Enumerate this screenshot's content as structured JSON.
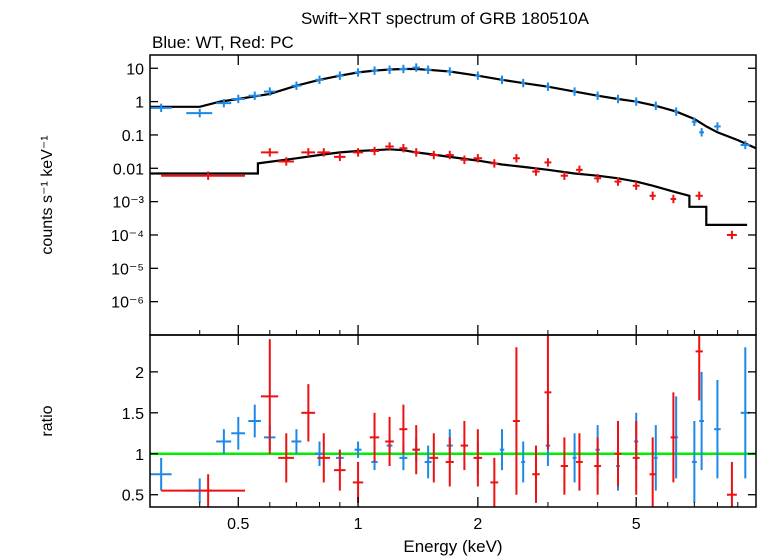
{
  "chart_data": {
    "type": "scatter",
    "title": "Swift−XRT spectrum of GRB 180510A",
    "subtitle": "Blue: WT, Red: PC",
    "xlabel": "Energy (keV)",
    "x_scale": "log",
    "xlim": [
      0.3,
      10
    ],
    "x_ticks": [
      {
        "value": 0.5,
        "label": "0.5"
      },
      {
        "value": 1,
        "label": "1"
      },
      {
        "value": 2,
        "label": "2"
      },
      {
        "value": 5,
        "label": "5"
      }
    ],
    "top_panel": {
      "ylabel": "counts s⁻¹ keV⁻¹",
      "y_scale": "log",
      "ylim": [
        1e-07,
        25
      ],
      "y_ticks": [
        {
          "value": 10,
          "label": "10"
        },
        {
          "value": 1,
          "label": "1"
        },
        {
          "value": 0.1,
          "label": "0.1"
        },
        {
          "value": 0.01,
          "label": "0.01"
        },
        {
          "value": 0.001,
          "label": "10⁻³"
        },
        {
          "value": 0.0001,
          "label": "10⁻⁴"
        },
        {
          "value": 1e-05,
          "label": "10⁻⁵"
        },
        {
          "value": 1e-06,
          "label": "10⁻⁶"
        }
      ],
      "series": [
        {
          "color": "#1e88e5",
          "points": [
            {
              "x": 0.32,
              "y": 0.65,
              "dx": 0.02
            },
            {
              "x": 0.4,
              "y": 0.45,
              "dx": 0.03
            },
            {
              "x": 0.46,
              "y": 0.9,
              "dx": 0.02
            },
            {
              "x": 0.5,
              "y": 1.2,
              "dx": 0.02
            },
            {
              "x": 0.55,
              "y": 1.5,
              "dx": 0.02
            },
            {
              "x": 0.6,
              "y": 2.0,
              "dx": 0.02
            },
            {
              "x": 0.7,
              "y": 3.0,
              "dx": 0.02
            },
            {
              "x": 0.8,
              "y": 4.5,
              "dx": 0.02
            },
            {
              "x": 0.9,
              "y": 6.0,
              "dx": 0.02
            },
            {
              "x": 1.0,
              "y": 7.5,
              "dx": 0.02
            },
            {
              "x": 1.1,
              "y": 8.5,
              "dx": 0.02
            },
            {
              "x": 1.2,
              "y": 9.0,
              "dx": 0.02
            },
            {
              "x": 1.3,
              "y": 9.5,
              "dx": 0.03
            },
            {
              "x": 1.4,
              "y": 10.5,
              "dx": 0.03
            },
            {
              "x": 1.5,
              "y": 9.0,
              "dx": 0.03
            },
            {
              "x": 1.7,
              "y": 8.0,
              "dx": 0.03
            },
            {
              "x": 2.0,
              "y": 6.0,
              "dx": 0.03
            },
            {
              "x": 2.3,
              "y": 4.5,
              "dx": 0.03
            },
            {
              "x": 2.6,
              "y": 3.6,
              "dx": 0.03
            },
            {
              "x": 3.0,
              "y": 2.8,
              "dx": 0.04
            },
            {
              "x": 3.5,
              "y": 2.0,
              "dx": 0.04
            },
            {
              "x": 4.0,
              "y": 1.5,
              "dx": 0.05
            },
            {
              "x": 4.5,
              "y": 1.2,
              "dx": 0.05
            },
            {
              "x": 5.0,
              "y": 1.0,
              "dx": 0.06
            },
            {
              "x": 5.6,
              "y": 0.75,
              "dx": 0.06
            },
            {
              "x": 6.3,
              "y": 0.5,
              "dx": 0.07
            },
            {
              "x": 7.0,
              "y": 0.25,
              "dx": 0.1
            },
            {
              "x": 7.3,
              "y": 0.12,
              "dx": 0.1
            },
            {
              "x": 8.0,
              "y": 0.18,
              "dx": 0.15
            },
            {
              "x": 9.4,
              "y": 0.05,
              "dx": 0.25
            }
          ]
        },
        {
          "color": "#ee1111",
          "points": [
            {
              "x": 0.42,
              "y": 0.006,
              "dx": 0.1
            },
            {
              "x": 0.6,
              "y": 0.03,
              "dx": 0.03
            },
            {
              "x": 0.66,
              "y": 0.016,
              "dx": 0.03
            },
            {
              "x": 0.75,
              "y": 0.03,
              "dx": 0.03
            },
            {
              "x": 0.82,
              "y": 0.03,
              "dx": 0.03
            },
            {
              "x": 0.9,
              "y": 0.022,
              "dx": 0.03
            },
            {
              "x": 1.0,
              "y": 0.03,
              "dx": 0.03
            },
            {
              "x": 1.1,
              "y": 0.033,
              "dx": 0.03
            },
            {
              "x": 1.2,
              "y": 0.045,
              "dx": 0.03
            },
            {
              "x": 1.3,
              "y": 0.04,
              "dx": 0.03
            },
            {
              "x": 1.4,
              "y": 0.03,
              "dx": 0.03
            },
            {
              "x": 1.55,
              "y": 0.025,
              "dx": 0.04
            },
            {
              "x": 1.7,
              "y": 0.025,
              "dx": 0.04
            },
            {
              "x": 1.85,
              "y": 0.018,
              "dx": 0.04
            },
            {
              "x": 2.0,
              "y": 0.02,
              "dx": 0.05
            },
            {
              "x": 2.2,
              "y": 0.014,
              "dx": 0.05
            },
            {
              "x": 2.5,
              "y": 0.02,
              "dx": 0.05
            },
            {
              "x": 2.8,
              "y": 0.008,
              "dx": 0.06
            },
            {
              "x": 3.0,
              "y": 0.015,
              "dx": 0.06
            },
            {
              "x": 3.3,
              "y": 0.006,
              "dx": 0.07
            },
            {
              "x": 3.6,
              "y": 0.009,
              "dx": 0.07
            },
            {
              "x": 4.0,
              "y": 0.005,
              "dx": 0.08
            },
            {
              "x": 4.5,
              "y": 0.004,
              "dx": 0.09
            },
            {
              "x": 5.0,
              "y": 0.003,
              "dx": 0.1
            },
            {
              "x": 5.5,
              "y": 0.0015,
              "dx": 0.1
            },
            {
              "x": 6.2,
              "y": 0.0012,
              "dx": 0.1
            },
            {
              "x": 7.2,
              "y": 0.0015,
              "dx": 0.15
            },
            {
              "x": 8.7,
              "y": 0.0001,
              "dx": 0.25
            }
          ]
        }
      ],
      "models": [
        {
          "color": "#000000",
          "x": [
            0.3,
            0.4,
            0.45,
            0.5,
            0.6,
            0.7,
            0.8,
            0.9,
            1.0,
            1.1,
            1.2,
            1.3,
            1.4,
            1.5,
            1.7,
            2.0,
            2.3,
            2.6,
            3.0,
            3.5,
            4.0,
            4.5,
            5.0,
            5.6,
            6.3,
            7.0,
            7.5,
            8.0,
            9.0,
            10
          ],
          "y": [
            0.7,
            0.7,
            1.0,
            1.2,
            1.7,
            3.0,
            4.5,
            6.0,
            7.5,
            8.5,
            9.2,
            9.5,
            9.5,
            9.0,
            8.0,
            6.0,
            4.5,
            3.6,
            2.8,
            2.0,
            1.5,
            1.2,
            1.0,
            0.75,
            0.5,
            0.3,
            0.18,
            0.12,
            0.07,
            0.04
          ]
        },
        {
          "color": "#000000",
          "x": [
            0.3,
            0.56,
            0.56,
            0.7,
            0.8,
            0.9,
            1.0,
            1.1,
            1.2,
            1.3,
            1.4,
            1.5,
            1.7,
            2.0,
            2.3,
            2.6,
            3.0,
            3.5,
            4.0,
            4.5,
            5.0,
            5.5,
            6.2,
            6.8,
            6.8,
            7.5,
            7.5,
            9.5
          ],
          "y": [
            0.007,
            0.007,
            0.014,
            0.02,
            0.025,
            0.03,
            0.033,
            0.035,
            0.037,
            0.035,
            0.03,
            0.027,
            0.022,
            0.017,
            0.013,
            0.011,
            0.009,
            0.007,
            0.006,
            0.005,
            0.004,
            0.003,
            0.002,
            0.0015,
            0.0007,
            0.0007,
            0.0002,
            0.0002
          ]
        }
      ]
    },
    "bottom_panel": {
      "ylabel": "ratio",
      "y_scale": "linear",
      "ylim": [
        0.35,
        2.45
      ],
      "y_ticks": [
        {
          "value": 0.5,
          "label": "0.5"
        },
        {
          "value": 1,
          "label": "1"
        },
        {
          "value": 1.5,
          "label": "1.5"
        },
        {
          "value": 2,
          "label": "2"
        }
      ],
      "reference_line": {
        "y": 1,
        "color": "#00ee00"
      },
      "series": [
        {
          "color": "#1e88e5",
          "points": [
            {
              "x": 0.32,
              "y": 0.75,
              "dy": 0.2
            },
            {
              "x": 0.4,
              "y": 0.55,
              "dy": 0.15
            },
            {
              "x": 0.46,
              "y": 1.15,
              "dy": 0.15
            },
            {
              "x": 0.5,
              "y": 1.25,
              "dy": 0.2
            },
            {
              "x": 0.55,
              "y": 1.4,
              "dy": 0.2
            },
            {
              "x": 0.6,
              "y": 1.2,
              "dy": 0.15
            },
            {
              "x": 0.7,
              "y": 1.15,
              "dy": 0.15
            },
            {
              "x": 0.8,
              "y": 1.0,
              "dy": 0.15
            },
            {
              "x": 0.9,
              "y": 0.95,
              "dy": 0.1
            },
            {
              "x": 1.0,
              "y": 1.05,
              "dy": 0.1
            },
            {
              "x": 1.1,
              "y": 0.9,
              "dy": 0.1
            },
            {
              "x": 1.2,
              "y": 1.1,
              "dy": 0.1
            },
            {
              "x": 1.3,
              "y": 0.95,
              "dy": 0.15
            },
            {
              "x": 1.4,
              "y": 1.05,
              "dy": 0.15
            },
            {
              "x": 1.5,
              "y": 0.9,
              "dy": 0.2
            },
            {
              "x": 1.7,
              "y": 1.1,
              "dy": 0.2
            },
            {
              "x": 2.0,
              "y": 0.95,
              "dy": 0.2
            },
            {
              "x": 2.3,
              "y": 1.05,
              "dy": 0.25
            },
            {
              "x": 2.6,
              "y": 0.9,
              "dy": 0.25
            },
            {
              "x": 3.0,
              "y": 1.1,
              "dy": 0.25
            },
            {
              "x": 3.5,
              "y": 0.95,
              "dy": 0.3
            },
            {
              "x": 4.0,
              "y": 1.05,
              "dy": 0.3
            },
            {
              "x": 4.5,
              "y": 0.85,
              "dy": 0.3
            },
            {
              "x": 5.0,
              "y": 1.15,
              "dy": 0.35
            },
            {
              "x": 5.6,
              "y": 0.95,
              "dy": 0.4
            },
            {
              "x": 6.3,
              "y": 1.2,
              "dy": 0.5
            },
            {
              "x": 7.0,
              "y": 0.9,
              "dy": 0.5
            },
            {
              "x": 7.3,
              "y": 1.4,
              "dy": 0.6
            },
            {
              "x": 8.0,
              "y": 1.3,
              "dy": 0.6
            },
            {
              "x": 9.4,
              "y": 1.5,
              "dy": 0.8
            }
          ]
        },
        {
          "color": "#ee1111",
          "points": [
            {
              "x": 0.42,
              "y": 0.55,
              "dy": 0.2
            },
            {
              "x": 0.6,
              "y": 1.7,
              "dy": 0.7
            },
            {
              "x": 0.66,
              "y": 0.95,
              "dy": 0.3
            },
            {
              "x": 0.75,
              "y": 1.5,
              "dy": 0.35
            },
            {
              "x": 0.82,
              "y": 0.95,
              "dy": 0.3
            },
            {
              "x": 0.9,
              "y": 0.8,
              "dy": 0.25
            },
            {
              "x": 1.0,
              "y": 0.65,
              "dy": 0.25
            },
            {
              "x": 1.1,
              "y": 1.2,
              "dy": 0.3
            },
            {
              "x": 1.2,
              "y": 1.15,
              "dy": 0.3
            },
            {
              "x": 1.3,
              "y": 1.3,
              "dy": 0.3
            },
            {
              "x": 1.4,
              "y": 1.05,
              "dy": 0.3
            },
            {
              "x": 1.55,
              "y": 0.95,
              "dy": 0.3
            },
            {
              "x": 1.7,
              "y": 0.9,
              "dy": 0.3
            },
            {
              "x": 1.85,
              "y": 1.1,
              "dy": 0.3
            },
            {
              "x": 2.0,
              "y": 0.95,
              "dy": 0.35
            },
            {
              "x": 2.2,
              "y": 0.65,
              "dy": 0.3
            },
            {
              "x": 2.5,
              "y": 1.4,
              "dy": 0.9
            },
            {
              "x": 2.8,
              "y": 0.75,
              "dy": 0.35
            },
            {
              "x": 3.0,
              "y": 1.75,
              "dy": 0.7
            },
            {
              "x": 3.3,
              "y": 0.85,
              "dy": 0.35
            },
            {
              "x": 3.6,
              "y": 0.9,
              "dy": 0.35
            },
            {
              "x": 4.0,
              "y": 0.85,
              "dy": 0.35
            },
            {
              "x": 4.5,
              "y": 1.0,
              "dy": 0.4
            },
            {
              "x": 5.0,
              "y": 0.95,
              "dy": 0.45
            },
            {
              "x": 5.5,
              "y": 0.75,
              "dy": 0.45
            },
            {
              "x": 6.2,
              "y": 1.2,
              "dy": 0.55
            },
            {
              "x": 7.2,
              "y": 2.25,
              "dy": 0.6
            },
            {
              "x": 8.7,
              "y": 0.5,
              "dy": 0.4
            }
          ]
        }
      ]
    }
  }
}
